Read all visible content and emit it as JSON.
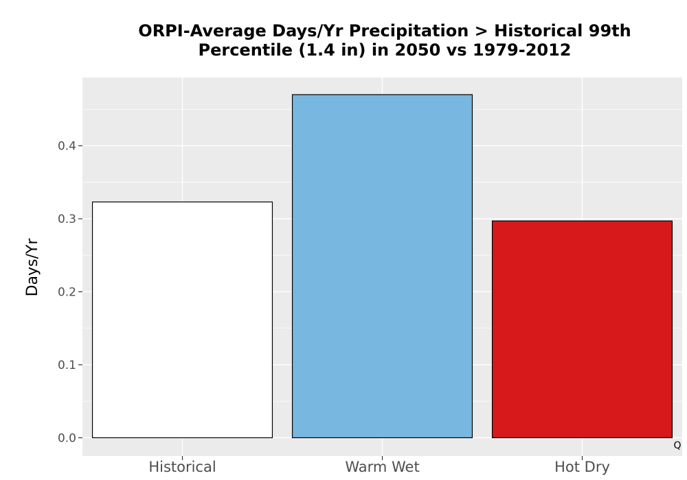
{
  "chart_data": {
    "type": "bar",
    "title_lines": [
      "ORPI-Average Days/Yr Precipitation > Historical 99th",
      "Percentile (1.4 in) in 2050 vs 1979-2012"
    ],
    "xlabel": "",
    "ylabel": "Days/Yr",
    "categories": [
      "Historical",
      "Warm Wet",
      "Hot Dry"
    ],
    "values": [
      0.323,
      0.47,
      0.297
    ],
    "colors": [
      "#FFFFFF",
      "#78B7E0",
      "#D7191C"
    ],
    "bar_outline_color": "#000000",
    "ylim": [
      -0.025,
      0.4935
    ],
    "yticks": [
      0.0,
      0.1,
      0.2,
      0.3,
      0.4
    ],
    "ytick_labels": [
      "0.0",
      "0.1",
      "0.2",
      "0.3",
      "0.4"
    ],
    "grid": true,
    "legend": "none",
    "panel_background": "#EBEBEB",
    "corner_mark": "Q"
  }
}
